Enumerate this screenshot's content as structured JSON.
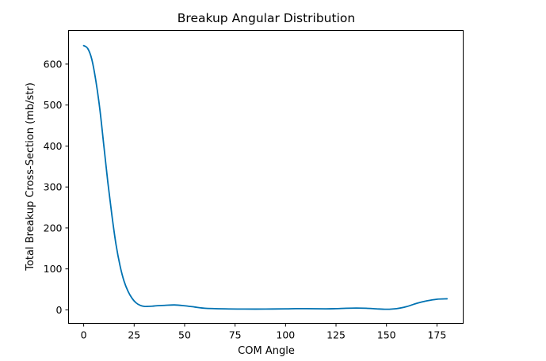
{
  "chart_data": {
    "type": "line",
    "title": "Breakup Angular Distribution",
    "xlabel": "COM Angle",
    "ylabel": "Total Breakup Cross-Section (mb/str)",
    "xlim": [
      -7.5,
      188
    ],
    "ylim": [
      -33,
      682
    ],
    "xticks": [
      0,
      25,
      50,
      75,
      100,
      125,
      150,
      175
    ],
    "yticks": [
      0,
      100,
      200,
      300,
      400,
      500,
      600
    ],
    "grid": false,
    "legend": "none",
    "series": [
      {
        "color": "#0072b2",
        "x": [
          0,
          2,
          4,
          6,
          8,
          10,
          12,
          14,
          16,
          18,
          20,
          22,
          24,
          26,
          28,
          30,
          32,
          34,
          36,
          40,
          45,
          50,
          55,
          60,
          70,
          80,
          90,
          100,
          105,
          110,
          120,
          125,
          130,
          135,
          140,
          145,
          150,
          155,
          160,
          165,
          170,
          175,
          180
        ],
        "y": [
          645,
          638,
          612,
          560,
          490,
          400,
          310,
          230,
          160,
          108,
          70,
          45,
          28,
          17,
          11,
          8.5,
          8.5,
          9,
          10,
          11,
          12,
          10,
          7,
          4,
          2.5,
          2,
          2,
          2.5,
          3,
          3,
          2.5,
          3,
          4,
          4.5,
          4,
          2.5,
          1.5,
          3,
          8,
          16,
          22,
          26,
          27
        ]
      }
    ]
  }
}
